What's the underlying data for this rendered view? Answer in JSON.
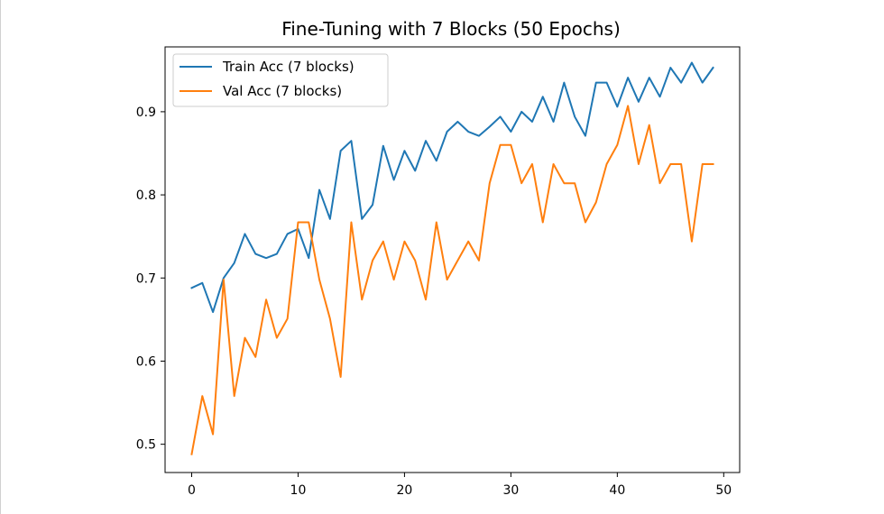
{
  "chart_data": {
    "type": "line",
    "title": "Fine-Tuning with 7 Blocks (50 Epochs)",
    "xlabel": "",
    "ylabel": "",
    "xlim": [
      -2.5,
      51.5
    ],
    "ylim": [
      0.466,
      0.978
    ],
    "xticks": [
      0,
      10,
      20,
      30,
      40,
      50
    ],
    "yticks": [
      0.5,
      0.6,
      0.7,
      0.8,
      0.9
    ],
    "grid": false,
    "legend_position": "top-left",
    "x": [
      0,
      1,
      2,
      3,
      4,
      5,
      6,
      7,
      8,
      9,
      10,
      11,
      12,
      13,
      14,
      15,
      16,
      17,
      18,
      19,
      20,
      21,
      22,
      23,
      24,
      25,
      26,
      27,
      28,
      29,
      30,
      31,
      32,
      33,
      34,
      35,
      36,
      37,
      38,
      39,
      40,
      41,
      42,
      43,
      44,
      45,
      46,
      47,
      48,
      49
    ],
    "series": [
      {
        "name": "Train Acc (7 blocks)",
        "color": "#1f77b4",
        "values": [
          0.688,
          0.694,
          0.659,
          0.7,
          0.718,
          0.753,
          0.729,
          0.724,
          0.729,
          0.753,
          0.759,
          0.724,
          0.806,
          0.771,
          0.853,
          0.865,
          0.771,
          0.788,
          0.859,
          0.818,
          0.853,
          0.829,
          0.865,
          0.841,
          0.876,
          0.888,
          0.876,
          0.871,
          0.882,
          0.894,
          0.876,
          0.9,
          0.888,
          0.918,
          0.888,
          0.935,
          0.894,
          0.871,
          0.935,
          0.935,
          0.906,
          0.941,
          0.912,
          0.941,
          0.918,
          0.953,
          0.935,
          0.959,
          0.935,
          0.953
        ]
      },
      {
        "name": "Val Acc (7 blocks)",
        "color": "#ff7f0e",
        "values": [
          0.488,
          0.558,
          0.512,
          0.698,
          0.558,
          0.628,
          0.605,
          0.674,
          0.628,
          0.651,
          0.767,
          0.767,
          0.698,
          0.651,
          0.581,
          0.767,
          0.674,
          0.721,
          0.744,
          0.698,
          0.744,
          0.721,
          0.674,
          0.767,
          0.698,
          0.721,
          0.744,
          0.721,
          0.814,
          0.86,
          0.86,
          0.814,
          0.837,
          0.767,
          0.837,
          0.814,
          0.814,
          0.767,
          0.791,
          0.837,
          0.86,
          0.907,
          0.837,
          0.884,
          0.814,
          0.837,
          0.837,
          0.744,
          0.837,
          0.837
        ]
      }
    ]
  }
}
